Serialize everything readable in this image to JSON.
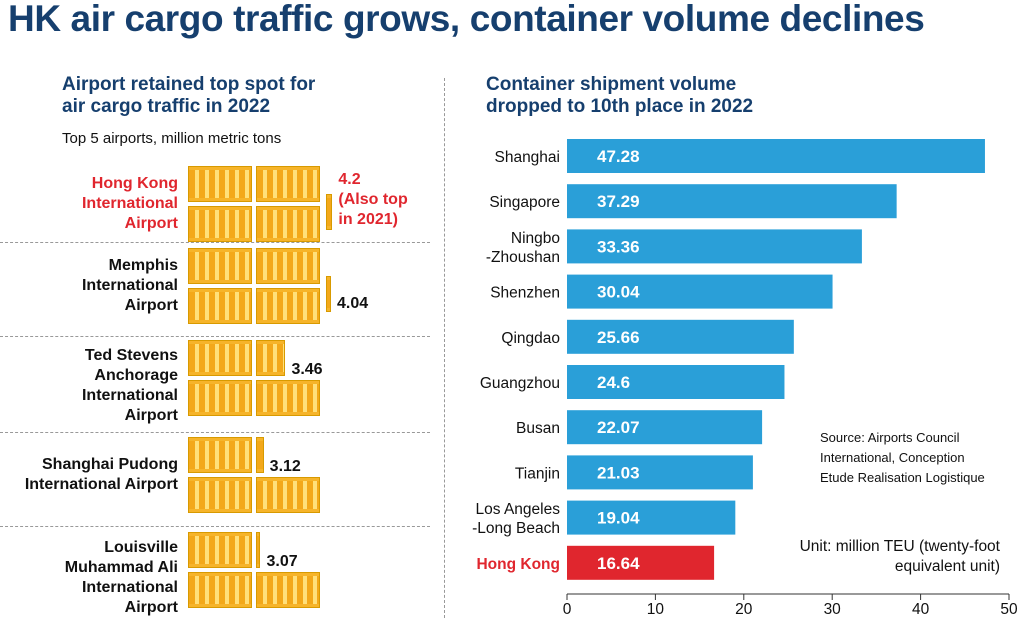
{
  "title": "HK air cargo traffic grows, container volume declines",
  "left": {
    "subtitle_line1": "Airport retained top spot for",
    "subtitle_line2": "air cargo traffic in 2022",
    "note": "Top 5 airports, million metric tons",
    "airports": [
      {
        "name_lines": [
          "Hong Kong",
          "International",
          "Airport"
        ],
        "value": 4.2,
        "label_lines": [
          "4.2",
          "(Also top",
          "in 2021)"
        ],
        "highlight": true
      },
      {
        "name_lines": [
          "Memphis",
          "International",
          "Airport"
        ],
        "value": 4.04,
        "label_lines": [
          "4.04"
        ],
        "highlight": false
      },
      {
        "name_lines": [
          "Ted Stevens",
          "Anchorage",
          "International",
          "Airport"
        ],
        "value": 3.46,
        "label_lines": [
          "3.46"
        ],
        "highlight": false
      },
      {
        "name_lines": [
          "Shanghai Pudong",
          "International Airport"
        ],
        "value": 3.12,
        "label_lines": [
          "3.12"
        ],
        "highlight": false
      },
      {
        "name_lines": [
          "Louisville",
          "Muhammad Ali",
          "International",
          "Airport"
        ],
        "value": 3.07,
        "label_lines": [
          "3.07"
        ],
        "highlight": false
      }
    ]
  },
  "right": {
    "subtitle_line1": "Container shipment volume",
    "subtitle_line2": "dropped to 10th place in 2022",
    "source_lines": [
      "Source: Airports Council",
      "International, Conception",
      "Etude Realisation Logistique"
    ],
    "unit_lines": [
      "Unit: million TEU (twenty-foot",
      "equivalent unit)"
    ]
  },
  "chart_data": {
    "type": "bar",
    "orientation": "horizontal",
    "categories": [
      [
        "Shanghai"
      ],
      [
        "Singapore"
      ],
      [
        "Ningbo",
        "-Zhoushan"
      ],
      [
        "Shenzhen"
      ],
      [
        "Qingdao"
      ],
      [
        "Guangzhou"
      ],
      [
        "Busan"
      ],
      [
        "Tianjin"
      ],
      [
        "Los Angeles",
        "-Long Beach"
      ],
      [
        "Hong Kong"
      ]
    ],
    "values": [
      47.28,
      37.29,
      33.36,
      30.04,
      25.66,
      24.6,
      22.07,
      21.03,
      19.04,
      16.64
    ],
    "value_labels": [
      "47.28",
      "37.29",
      "33.36",
      "30.04",
      "25.66",
      "24.6",
      "22.07",
      "21.03",
      "19.04",
      "16.64"
    ],
    "highlight_category": "Hong Kong",
    "xlim": [
      0,
      50
    ],
    "xticks": [
      0,
      10,
      20,
      30,
      40,
      50
    ],
    "colors": {
      "bar": "#2a9fd8",
      "highlight": "#e0262e",
      "highlight_label": "#e0262e"
    }
  },
  "colors": {
    "title": "#163f6e",
    "crate": "#f3a81a",
    "accent": "#e0262e"
  }
}
